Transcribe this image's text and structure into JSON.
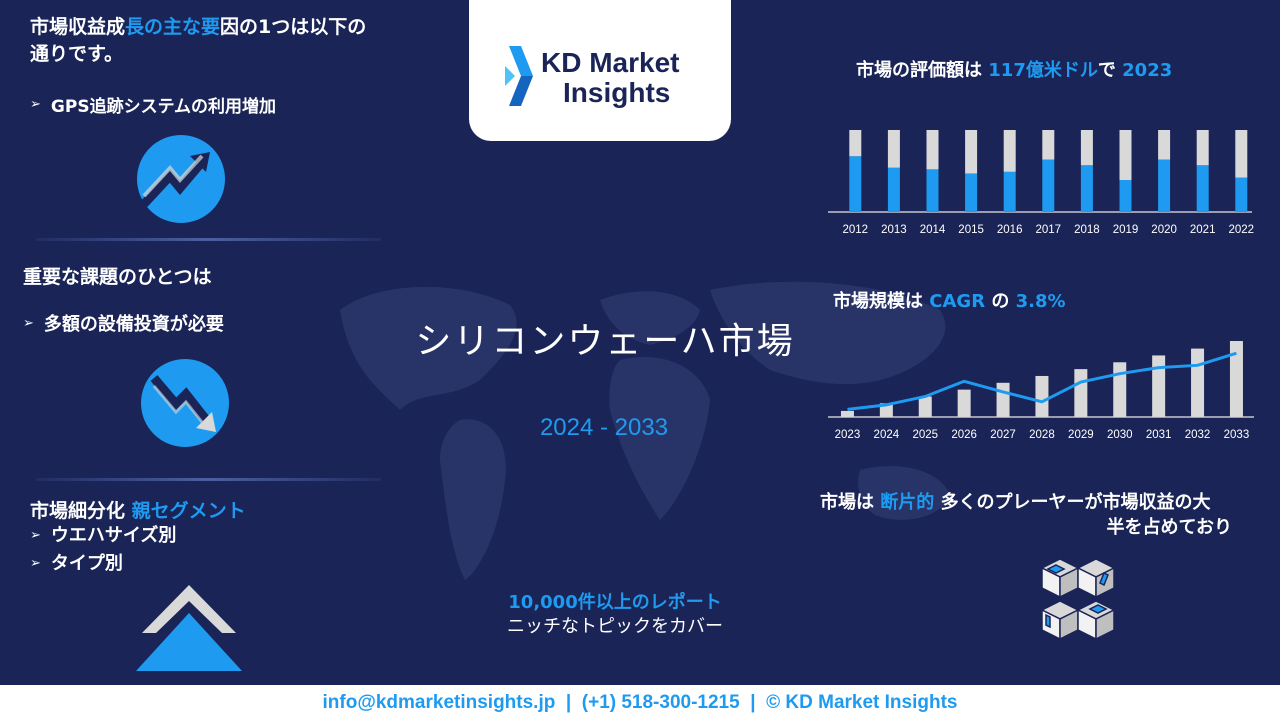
{
  "left": {
    "drivers_heading_a": "市場収益成",
    "drivers_heading_b": "長の主な要",
    "drivers_heading_c": "因の1つは以下の",
    "drivers_heading_d": "通りです。",
    "driver_item": "GPS追跡システムの利用増加",
    "challenge_heading": "重要な課題のひとつは",
    "challenge_item": "多額の設備投資が必要",
    "segment_heading": "市場細分化",
    "segment_heading_hl": "親セグメント",
    "segments": [
      "ウエハサイズ別",
      "タイプ別"
    ]
  },
  "logo": {
    "line1": "KD Market",
    "line2": "Insights"
  },
  "center": {
    "title": "シリコンウェーハ市場",
    "period": "2024 - 2033",
    "reports_hl": "10,000件以上のレポート",
    "reports_sub": "ニッチなトピックをカバー"
  },
  "right": {
    "valuation_a": "市場の評価額は",
    "valuation_value": "117億米ドル",
    "valuation_b": "で",
    "valuation_year": "2023",
    "cagr_a": "市場規模は",
    "cagr_label": "CAGR",
    "cagr_b": "の",
    "cagr_value": "3.8%",
    "frag_a": "市場は",
    "frag_hl": "断片的",
    "frag_b": "多くのプレーヤーが市場収益の大",
    "frag_c": "半を占めており"
  },
  "footer": {
    "text": "info@kdmarketinsights.jp  |  (+1) 518-300-1215  |  © KD Market Insights"
  },
  "colors": {
    "accent": "#1e9bf0",
    "background": "#1a2456",
    "bar_grey": "#d9d9d9"
  },
  "chart_data": [
    {
      "type": "bar",
      "categories": [
        "2012",
        "2013",
        "2014",
        "2015",
        "2016",
        "2017",
        "2018",
        "2019",
        "2020",
        "2021",
        "2022"
      ],
      "series": [
        {
          "values": [
            0.68,
            0.54,
            0.52,
            0.47,
            0.49,
            0.64,
            0.57,
            0.39,
            0.64,
            0.57,
            0.42
          ]
        },
        {
          "values": [
            0.32,
            0.46,
            0.48,
            0.53,
            0.51,
            0.36,
            0.43,
            0.61,
            0.36,
            0.43,
            0.58
          ]
        }
      ],
      "ylim": [
        0,
        1
      ]
    },
    {
      "type": "bar",
      "categories": [
        "2023",
        "2024",
        "2025",
        "2026",
        "2027",
        "2028",
        "2029",
        "2030",
        "2031",
        "2032",
        "2033"
      ],
      "values": [
        0.08,
        0.18,
        0.27,
        0.36,
        0.45,
        0.54,
        0.63,
        0.72,
        0.81,
        0.9,
        1.0
      ],
      "line": [
        0.1,
        0.16,
        0.27,
        0.47,
        0.33,
        0.2,
        0.46,
        0.57,
        0.65,
        0.68,
        0.84
      ],
      "ylim": [
        0,
        1.15
      ]
    }
  ]
}
